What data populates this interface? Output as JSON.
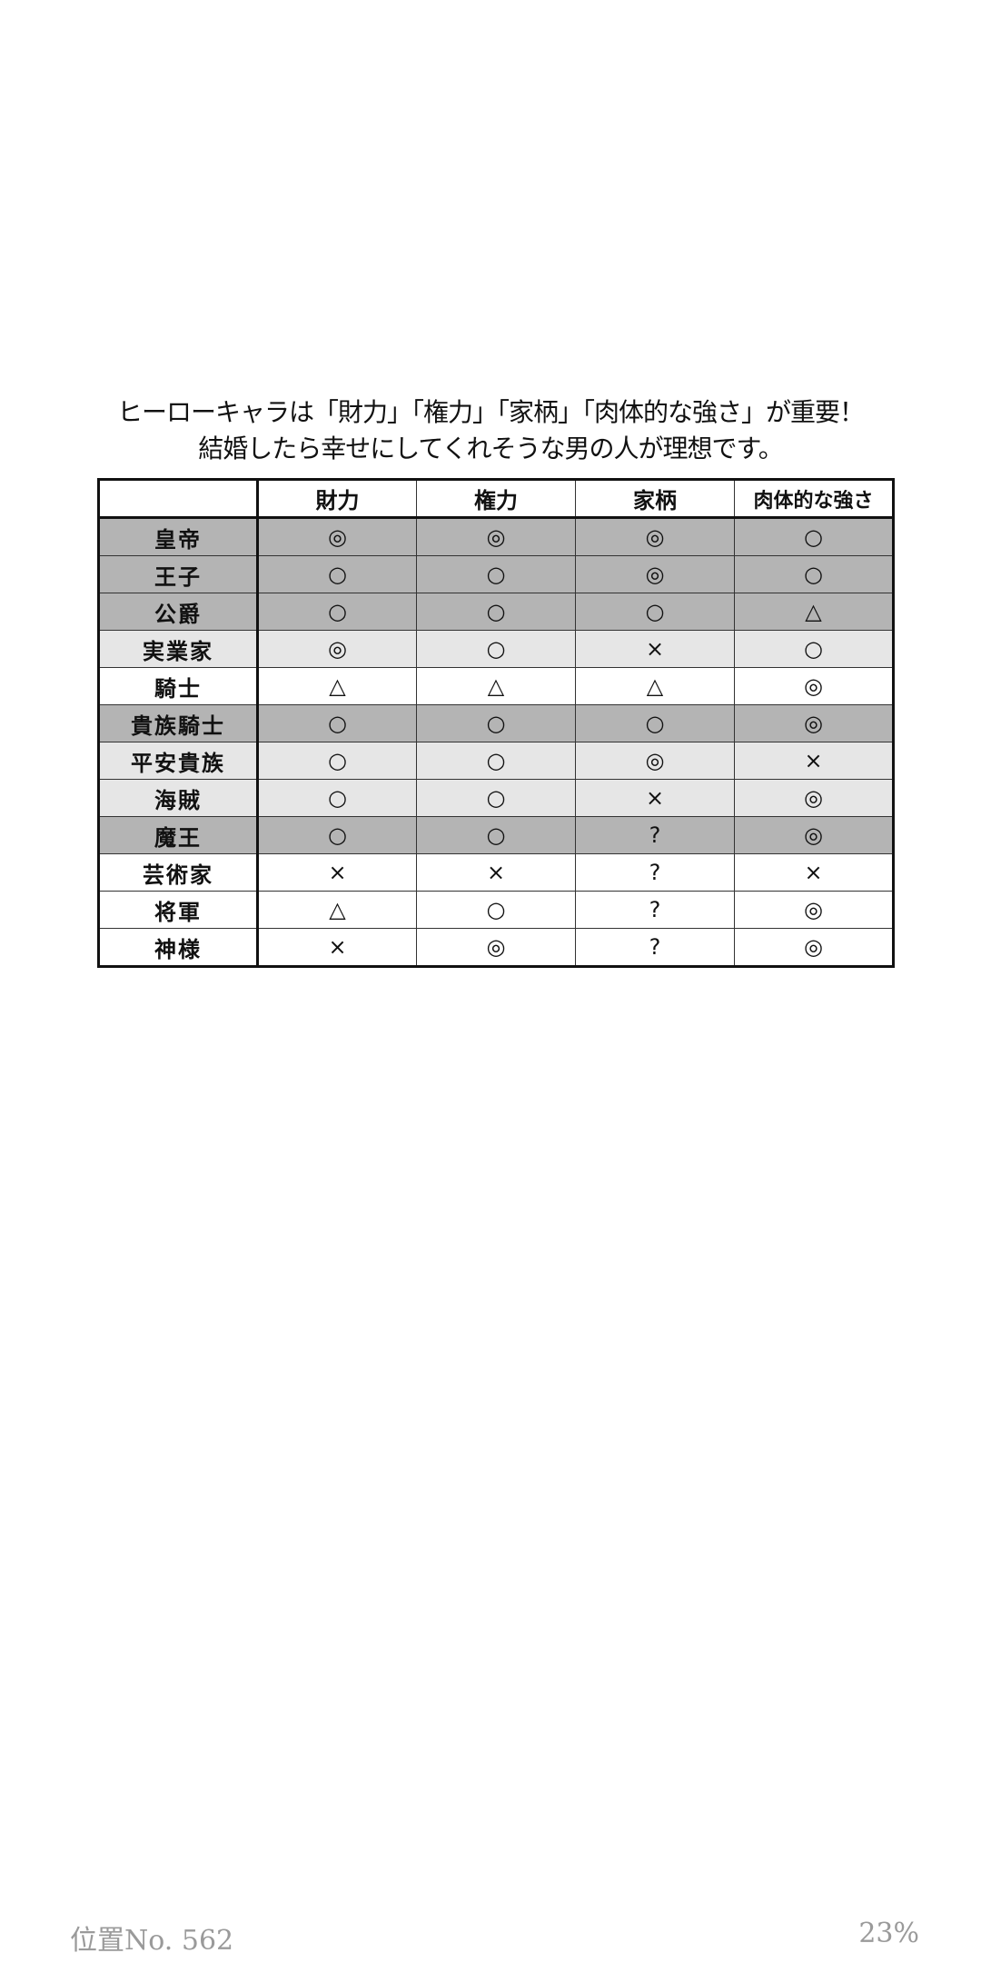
{
  "caption": {
    "line1": "ヒーローキャラは「財力」「権力」「家柄」「肉体的な強さ」が重要！",
    "line2": "結婚したら幸せにしてくれそうな男の人が理想です。"
  },
  "table": {
    "headers": [
      "",
      "財力",
      "権力",
      "家柄",
      "肉体的な強さ"
    ],
    "rows": [
      {
        "label": "皇帝",
        "shade": "dark",
        "values": [
          "◎",
          "◎",
          "◎",
          "○"
        ]
      },
      {
        "label": "王子",
        "shade": "dark",
        "values": [
          "○",
          "○",
          "◎",
          "○"
        ]
      },
      {
        "label": "公爵",
        "shade": "dark",
        "values": [
          "○",
          "○",
          "○",
          "△"
        ]
      },
      {
        "label": "実業家",
        "shade": "light",
        "values": [
          "◎",
          "○",
          "×",
          "○"
        ]
      },
      {
        "label": "騎士",
        "shade": "white",
        "values": [
          "△",
          "△",
          "△",
          "◎"
        ]
      },
      {
        "label": "貴族騎士",
        "shade": "dark",
        "values": [
          "○",
          "○",
          "○",
          "◎"
        ]
      },
      {
        "label": "平安貴族",
        "shade": "light",
        "values": [
          "○",
          "○",
          "◎",
          "×"
        ]
      },
      {
        "label": "海賊",
        "shade": "light",
        "values": [
          "○",
          "○",
          "×",
          "◎"
        ]
      },
      {
        "label": "魔王",
        "shade": "dark",
        "values": [
          "○",
          "○",
          "?",
          "◎"
        ]
      },
      {
        "label": "芸術家",
        "shade": "white",
        "values": [
          "×",
          "×",
          "?",
          "×"
        ]
      },
      {
        "label": "将軍",
        "shade": "white",
        "values": [
          "△",
          "○",
          "?",
          "◎"
        ]
      },
      {
        "label": "神様",
        "shade": "white",
        "values": [
          "×",
          "◎",
          "?",
          "◎"
        ]
      }
    ],
    "colors": {
      "dark": "#b4b4b4",
      "light": "#e6e6e6",
      "white": "#ffffff"
    }
  },
  "footer": {
    "location": "位置No. 562",
    "percent": "23%"
  }
}
